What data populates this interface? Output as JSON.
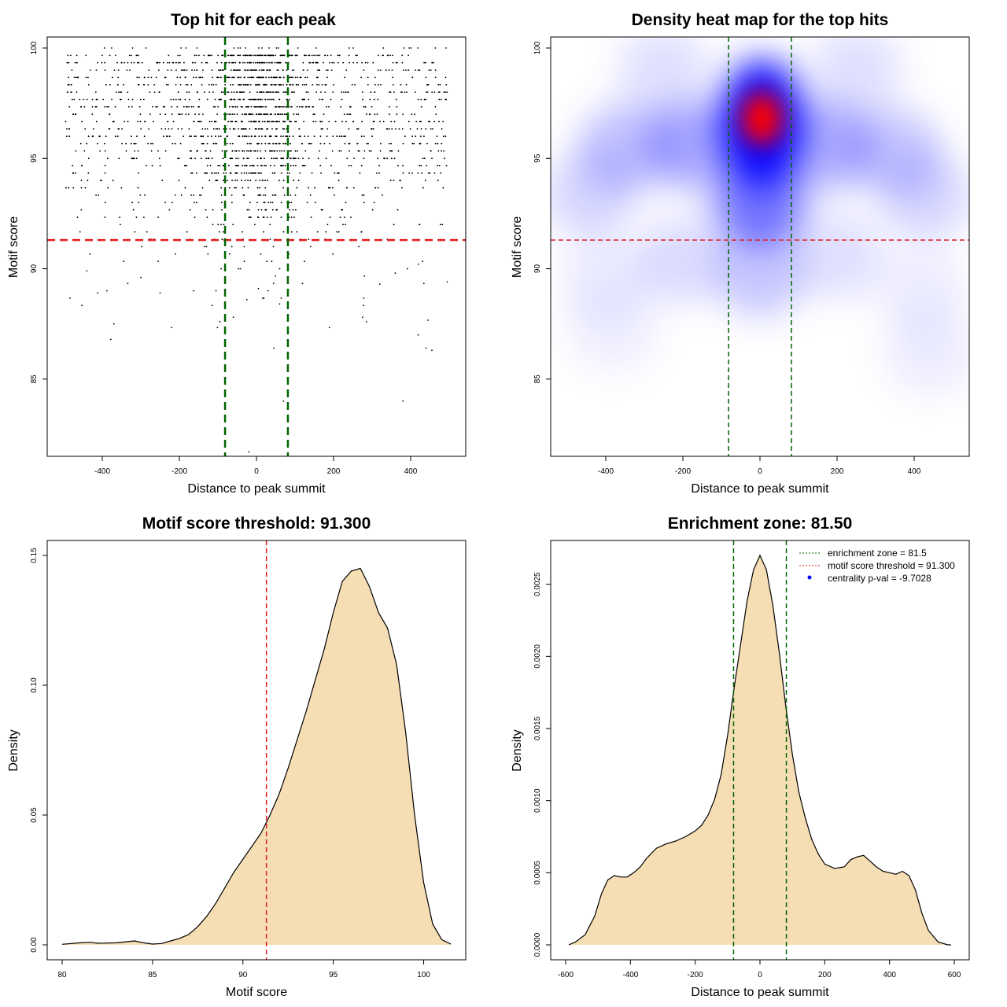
{
  "chart_data": [
    {
      "type": "scatter",
      "title": "Top hit for each peak",
      "xlabel": "Distance to peak summit",
      "ylabel": "Motif score",
      "xlim": [
        -500,
        500
      ],
      "ylim": [
        81.5,
        100.5
      ],
      "xticks": [
        -400,
        -200,
        0,
        200,
        400
      ],
      "yticks": [
        85,
        90,
        95,
        100
      ],
      "hline": {
        "y": 91.3,
        "color": "#e41a1c"
      },
      "vlines": {
        "x": [
          -81.5,
          81.5
        ],
        "color": "#006400"
      },
      "point_color": "#000000",
      "n_points": 1900,
      "points_sample": [
        [
          -370,
          87.5
        ],
        [
          -378,
          86.8
        ],
        [
          -412,
          88.9
        ],
        [
          -440,
          89.9
        ],
        [
          -388,
          89.0
        ],
        [
          -60,
          87.8
        ],
        [
          -25,
          88.6
        ],
        [
          5,
          89.1
        ],
        [
          60,
          88.4
        ],
        [
          45,
          86.4
        ],
        [
          70,
          84.0
        ],
        [
          -20,
          81.7
        ],
        [
          380,
          84.0
        ],
        [
          440,
          86.4
        ],
        [
          455,
          86.3
        ],
        [
          275,
          87.8
        ],
        [
          285,
          87.6
        ],
        [
          495,
          89.4
        ],
        [
          -95,
          87.6
        ],
        [
          30,
          89.0
        ],
        [
          -300,
          89.6
        ],
        [
          -250,
          88.9
        ],
        [
          320,
          89.3
        ],
        [
          360,
          89.8
        ],
        [
          420,
          90.2
        ]
      ]
    },
    {
      "type": "heatmap",
      "title": "Density heat map for the top hits",
      "xlabel": "Distance to peak summit",
      "ylabel": "Motif score",
      "xlim": [
        -500,
        500
      ],
      "ylim": [
        81.5,
        100.5
      ],
      "xticks": [
        -400,
        -200,
        0,
        200,
        400
      ],
      "yticks": [
        85,
        90,
        95,
        100
      ],
      "hline": {
        "y": 91.3,
        "color": "#e41a1c"
      },
      "vlines": {
        "x": [
          -81.5,
          81.5
        ],
        "color": "#006400"
      },
      "colors": {
        "low": "#ffffff",
        "mid": "#0000ff",
        "high": "#ff0000"
      },
      "peak": {
        "x": 5,
        "y": 96.8
      },
      "density_blobs": [
        {
          "x": 5,
          "y": 96.6,
          "w": 1.0
        },
        {
          "x": 0,
          "y": 93.0,
          "w": 0.55
        },
        {
          "x": -180,
          "y": 95.6,
          "w": 0.35
        },
        {
          "x": 180,
          "y": 95.6,
          "w": 0.33
        },
        {
          "x": -350,
          "y": 95.5,
          "w": 0.24
        },
        {
          "x": 350,
          "y": 95.3,
          "w": 0.22
        },
        {
          "x": -440,
          "y": 93.4,
          "w": 0.16
        },
        {
          "x": 430,
          "y": 93.3,
          "w": 0.16
        },
        {
          "x": -250,
          "y": 99.0,
          "w": 0.12
        },
        {
          "x": 250,
          "y": 99.0,
          "w": 0.12
        },
        {
          "x": -200,
          "y": 90.4,
          "w": 0.14
        },
        {
          "x": 200,
          "y": 90.6,
          "w": 0.12
        },
        {
          "x": 0,
          "y": 89.8,
          "w": 0.22
        },
        {
          "x": -400,
          "y": 89.5,
          "w": 0.08
        },
        {
          "x": 420,
          "y": 89.0,
          "w": 0.07
        },
        {
          "x": 440,
          "y": 86.2,
          "w": 0.07
        },
        {
          "x": -380,
          "y": 87.2,
          "w": 0.06
        }
      ]
    },
    {
      "type": "area",
      "title": "Motif score threshold: 91.300",
      "xlabel": "Motif score",
      "ylabel": "Density",
      "xlim": [
        80,
        101.5
      ],
      "ylim": [
        0,
        0.15
      ],
      "xticks": [
        80,
        85,
        90,
        95,
        100
      ],
      "yticks": [
        0.0,
        0.05,
        0.1,
        0.15
      ],
      "ytick_labels": [
        "0.00",
        "0.05",
        "0.10",
        "0.15"
      ],
      "vline": {
        "x": 91.3,
        "color": "#e41a1c"
      },
      "fill": "#f5deb3",
      "x": [
        80.0,
        81.0,
        81.5,
        82.0,
        83.0,
        84.0,
        84.5,
        85.0,
        85.5,
        86.0,
        86.5,
        87.0,
        87.5,
        88.0,
        88.5,
        89.0,
        89.5,
        90.0,
        90.5,
        91.0,
        91.5,
        92.0,
        92.5,
        93.0,
        93.5,
        94.0,
        94.5,
        95.0,
        95.5,
        96.0,
        96.5,
        97.0,
        97.5,
        98.0,
        98.5,
        99.0,
        99.5,
        100.0,
        100.5,
        101.0,
        101.5
      ],
      "y": [
        0.0002,
        0.0008,
        0.001,
        0.0006,
        0.0008,
        0.0015,
        0.0008,
        0.0003,
        0.0005,
        0.0015,
        0.0025,
        0.004,
        0.007,
        0.011,
        0.016,
        0.022,
        0.028,
        0.033,
        0.038,
        0.043,
        0.05,
        0.058,
        0.068,
        0.079,
        0.09,
        0.102,
        0.114,
        0.128,
        0.14,
        0.144,
        0.145,
        0.138,
        0.128,
        0.122,
        0.108,
        0.082,
        0.05,
        0.024,
        0.008,
        0.002,
        0.0003
      ]
    },
    {
      "type": "area",
      "title": "Enrichment zone: 81.50",
      "xlabel": "Distance to peak summit",
      "ylabel": "Density",
      "xlim": [
        -600,
        600
      ],
      "ylim": [
        0,
        0.0027
      ],
      "xticks": [
        -600,
        -400,
        -200,
        0,
        200,
        400,
        600
      ],
      "yticks": [
        0.0,
        0.0005,
        0.001,
        0.0015,
        0.002,
        0.0025
      ],
      "ytick_labels": [
        "0.0000",
        "0.0005",
        "0.0010",
        "0.0015",
        "0.0020",
        "0.0025"
      ],
      "vlines": {
        "x": [
          -81.5,
          81.5
        ],
        "color": "#006400"
      },
      "fill": "#f5deb3",
      "x": [
        -590,
        -570,
        -540,
        -510,
        -490,
        -470,
        -450,
        -430,
        -410,
        -390,
        -370,
        -350,
        -320,
        -290,
        -260,
        -230,
        -200,
        -180,
        -160,
        -140,
        -120,
        -100,
        -80,
        -60,
        -40,
        -20,
        0,
        20,
        40,
        60,
        80,
        100,
        120,
        140,
        160,
        180,
        200,
        230,
        260,
        280,
        300,
        320,
        340,
        360,
        380,
        400,
        420,
        440,
        460,
        480,
        500,
        520,
        550,
        580,
        590
      ],
      "y": [
        0.0,
        2e-05,
        7e-05,
        0.0002,
        0.00035,
        0.00045,
        0.00048,
        0.00047,
        0.00047,
        0.0005,
        0.00054,
        0.0006,
        0.00067,
        0.0007,
        0.00072,
        0.00075,
        0.00079,
        0.00083,
        0.0009,
        0.00101,
        0.00118,
        0.00145,
        0.00178,
        0.00208,
        0.00238,
        0.0026,
        0.0027,
        0.0026,
        0.00235,
        0.00202,
        0.00165,
        0.00132,
        0.00106,
        0.00088,
        0.00073,
        0.00063,
        0.00056,
        0.00053,
        0.00054,
        0.00059,
        0.00061,
        0.00062,
        0.00058,
        0.00054,
        0.00051,
        0.0005,
        0.00049,
        0.00051,
        0.00048,
        0.00038,
        0.00022,
        0.0001,
        2e-05,
        0.0,
        0.0
      ],
      "legend": {
        "placement": "top-right",
        "entries": [
          {
            "label": "enrichment zone = 81.5",
            "color": "#006400",
            "style": "dotted-line"
          },
          {
            "label": "motif score threshold = 91.300",
            "color": "#e41a1c",
            "style": "dotted-line"
          },
          {
            "label": "centrality p-val = -9.7028",
            "color": "#0000ff",
            "style": "point"
          }
        ]
      }
    }
  ]
}
